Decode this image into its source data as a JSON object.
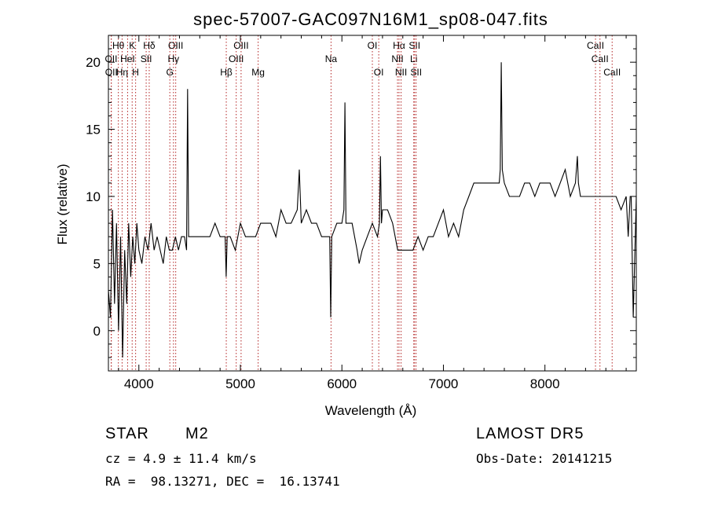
{
  "chart_data": {
    "type": "line",
    "title": "spec-57007-GAC097N16M1_sp08-047.fits",
    "xlabel": "Wavelength (Å)",
    "ylabel": "Flux (relative)",
    "xlim": [
      3700,
      8900
    ],
    "ylim": [
      -3,
      22
    ],
    "xticks": [
      4000,
      5000,
      6000,
      7000,
      8000
    ],
    "yticks": [
      0,
      5,
      10,
      15,
      20
    ],
    "grid": false,
    "series": [
      {
        "color": "#000000",
        "x": [
          3700,
          3720,
          3740,
          3760,
          3780,
          3800,
          3820,
          3840,
          3860,
          3880,
          3900,
          3920,
          3940,
          3960,
          3980,
          4000,
          4030,
          4060,
          4090,
          4120,
          4150,
          4180,
          4210,
          4240,
          4270,
          4300,
          4330,
          4360,
          4390,
          4420,
          4450,
          4470,
          4480,
          4490,
          4500,
          4530,
          4560,
          4600,
          4650,
          4700,
          4750,
          4800,
          4850,
          4860,
          4870,
          4900,
          4950,
          5000,
          5050,
          5100,
          5150,
          5200,
          5250,
          5300,
          5350,
          5400,
          5450,
          5500,
          5560,
          5580,
          5600,
          5650,
          5700,
          5750,
          5800,
          5850,
          5880,
          5890,
          5900,
          5950,
          6000,
          6020,
          6030,
          6040,
          6050,
          6100,
          6150,
          6170,
          6200,
          6250,
          6300,
          6350,
          6370,
          6380,
          6390,
          6400,
          6450,
          6500,
          6550,
          6600,
          6650,
          6700,
          6750,
          6800,
          6850,
          6900,
          6950,
          7000,
          7050,
          7100,
          7150,
          7200,
          7250,
          7300,
          7350,
          7400,
          7450,
          7500,
          7550,
          7560,
          7570,
          7580,
          7600,
          7650,
          7700,
          7750,
          7800,
          7850,
          7900,
          7950,
          8000,
          8050,
          8100,
          8150,
          8200,
          8250,
          8300,
          8320,
          8330,
          8350,
          8400,
          8450,
          8500,
          8550,
          8600,
          8650,
          8700,
          8750,
          8800,
          8820,
          8840,
          8850,
          8870,
          8900
        ],
        "y": [
          3,
          1,
          9,
          2,
          8,
          0,
          7,
          -2,
          6,
          2,
          8,
          4,
          7,
          5,
          8,
          6,
          5,
          7,
          6,
          8,
          6,
          7,
          6,
          5,
          7,
          6,
          6,
          7,
          6,
          7,
          7,
          6,
          18,
          7,
          7,
          7,
          7,
          7,
          7,
          7,
          8,
          7,
          7,
          4,
          7,
          7,
          6,
          8,
          7,
          7,
          7,
          8,
          8,
          8,
          7,
          9,
          8,
          8,
          9,
          12,
          8,
          9,
          8,
          8,
          7,
          7,
          7,
          1,
          7,
          8,
          8,
          9,
          17,
          8,
          8,
          8,
          6,
          5,
          6,
          7,
          8,
          7,
          8,
          13,
          8,
          9,
          9,
          8,
          6,
          6,
          6,
          6,
          7,
          6,
          7,
          7,
          8,
          9,
          7,
          8,
          7,
          9,
          10,
          11,
          11,
          11,
          11,
          11,
          11,
          12,
          20,
          12,
          11,
          10,
          10,
          10,
          11,
          11,
          10,
          11,
          11,
          11,
          10,
          11,
          12,
          10,
          11,
          13,
          11,
          10,
          10,
          10,
          10,
          10,
          10,
          10,
          10,
          9,
          10,
          7,
          10,
          10,
          1,
          10
        ]
      }
    ],
    "line_markers": [
      {
        "label": "Hθ",
        "x": 3798,
        "row": 1
      },
      {
        "label": "OII",
        "x": 3727,
        "row": 2
      },
      {
        "label": "OII",
        "x": 3729,
        "row": 3
      },
      {
        "label": "Hη",
        "x": 3835,
        "row": 3
      },
      {
        "label": "HeI",
        "x": 3889,
        "row": 2
      },
      {
        "label": "K",
        "x": 3934,
        "row": 1
      },
      {
        "label": "H",
        "x": 3968,
        "row": 3
      },
      {
        "label": "Hδ",
        "x": 4102,
        "row": 1
      },
      {
        "label": "SII",
        "x": 4072,
        "row": 2
      },
      {
        "label": "OIII",
        "x": 4363,
        "row": 1
      },
      {
        "label": "Hγ",
        "x": 4341,
        "row": 2
      },
      {
        "label": "G",
        "x": 4305,
        "row": 3
      },
      {
        "label": "Hβ",
        "x": 4861,
        "row": 3
      },
      {
        "label": "OIII",
        "x": 4959,
        "row": 2
      },
      {
        "label": "OIII",
        "x": 5007,
        "row": 1
      },
      {
        "label": "Mg",
        "x": 5175,
        "row": 3
      },
      {
        "label": "Na",
        "x": 5893,
        "row": 2
      },
      {
        "label": "OI",
        "x": 6300,
        "row": 1
      },
      {
        "label": "OI",
        "x": 6363,
        "row": 3
      },
      {
        "label": "Hα",
        "x": 6563,
        "row": 1
      },
      {
        "label": "NII",
        "x": 6548,
        "row": 2
      },
      {
        "label": "NII",
        "x": 6583,
        "row": 3
      },
      {
        "label": "SII",
        "x": 6716,
        "row": 1
      },
      {
        "label": "Li",
        "x": 6708,
        "row": 2
      },
      {
        "label": "SII",
        "x": 6731,
        "row": 3
      },
      {
        "label": "CaII",
        "x": 8498,
        "row": 1
      },
      {
        "label": "CaII",
        "x": 8542,
        "row": 2
      },
      {
        "label": "CaII",
        "x": 8662,
        "row": 3
      }
    ],
    "marker_color": "#b22222"
  },
  "info": {
    "class_label": "STAR",
    "subclass_label": "M2",
    "survey": "LAMOST DR5",
    "cz_line": "cz = 4.9 ± 11.4 km/s",
    "obs_date": "Obs-Date: 20141215",
    "coords": "RA =  98.13271, DEC =  16.13741"
  }
}
